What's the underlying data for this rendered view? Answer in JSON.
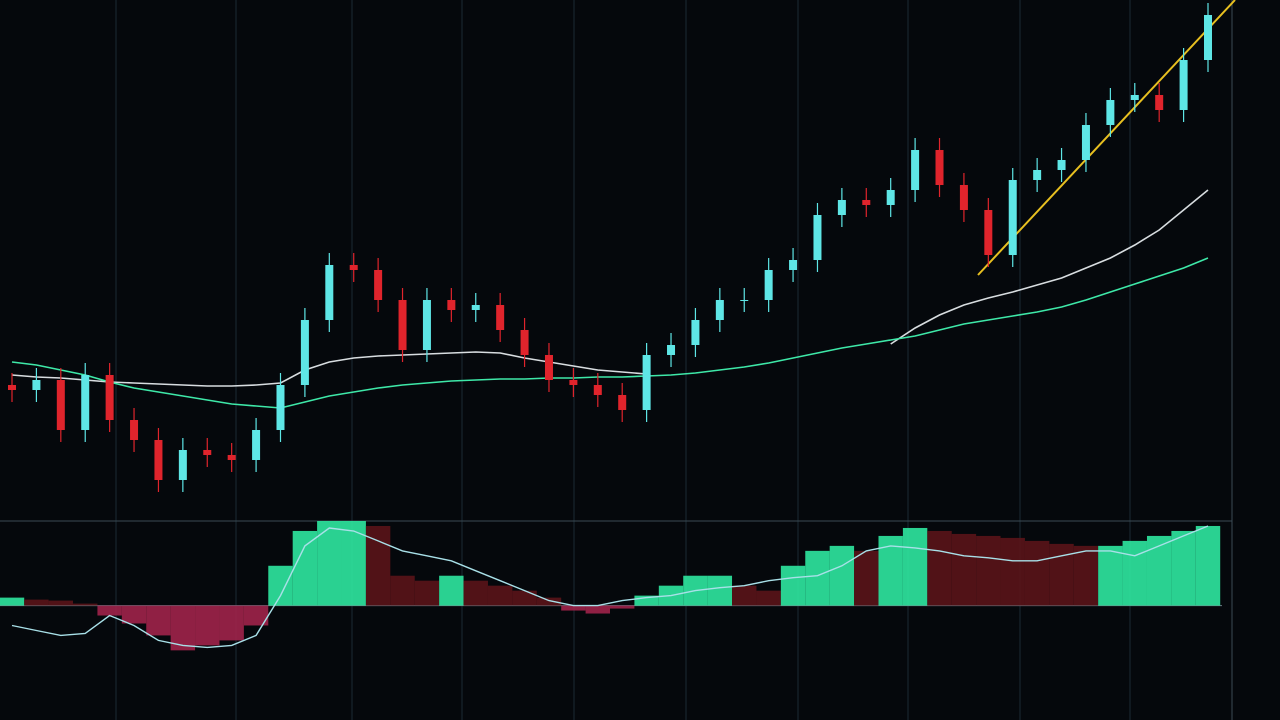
{
  "chart_data": [
    {
      "type": "candlestick",
      "ylim": [
        0,
        520
      ],
      "up_color": "#5ee6e6",
      "down_color": "#e0242c",
      "open": [
        135,
        130,
        140,
        90,
        145,
        100,
        80,
        40,
        70,
        65,
        60,
        90,
        135,
        200,
        255,
        250,
        220,
        170,
        220,
        210,
        215,
        190,
        165,
        140,
        135,
        125,
        110,
        165,
        175,
        200,
        220,
        220,
        250,
        260,
        305,
        320,
        315,
        330,
        370,
        335,
        310,
        265,
        340,
        350,
        360,
        395,
        420,
        425,
        410,
        460
      ],
      "close": [
        130,
        140,
        90,
        145,
        100,
        80,
        40,
        70,
        65,
        60,
        90,
        135,
        200,
        255,
        250,
        220,
        170,
        220,
        210,
        215,
        190,
        165,
        140,
        135,
        125,
        110,
        165,
        175,
        200,
        220,
        220,
        250,
        260,
        305,
        320,
        315,
        330,
        370,
        335,
        310,
        265,
        340,
        350,
        360,
        395,
        420,
        425,
        410,
        460,
        505
      ],
      "high": [
        147,
        152,
        152,
        157,
        157,
        112,
        92,
        82,
        82,
        77,
        102,
        147,
        212,
        267,
        267,
        262,
        232,
        232,
        232,
        227,
        227,
        202,
        177,
        152,
        147,
        137,
        177,
        187,
        212,
        232,
        232,
        262,
        272,
        317,
        332,
        332,
        342,
        382,
        382,
        347,
        322,
        352,
        362,
        372,
        407,
        432,
        437,
        437,
        472,
        517
      ],
      "low": [
        118,
        118,
        78,
        78,
        88,
        68,
        28,
        28,
        53,
        48,
        48,
        78,
        123,
        188,
        238,
        208,
        158,
        158,
        198,
        198,
        178,
        153,
        128,
        123,
        113,
        98,
        98,
        153,
        163,
        188,
        208,
        208,
        238,
        248,
        293,
        303,
        303,
        318,
        323,
        298,
        253,
        253,
        328,
        338,
        348,
        383,
        408,
        398,
        398,
        448
      ],
      "overlays": [
        {
          "color": "#d8dde0",
          "values": [
            145,
            143,
            142,
            140,
            138,
            137,
            136,
            135,
            134,
            134,
            135,
            137,
            150,
            158,
            162,
            164,
            165,
            166,
            167,
            168,
            167,
            162,
            158,
            154,
            150,
            148,
            146,
            null,
            null,
            null,
            null,
            null,
            null,
            null,
            null,
            null,
            176,
            192,
            205,
            215,
            222,
            228,
            235,
            242,
            252,
            262,
            275,
            290,
            310,
            330
          ]
        },
        {
          "color": "#3ee8a8",
          "values": [
            158,
            155,
            150,
            145,
            138,
            132,
            128,
            124,
            120,
            116,
            114,
            112,
            118,
            124,
            128,
            132,
            135,
            137,
            139,
            140,
            141,
            141,
            142,
            142,
            143,
            143,
            144,
            145,
            147,
            150,
            153,
            157,
            162,
            167,
            172,
            176,
            180,
            184,
            190,
            196,
            200,
            204,
            208,
            213,
            220,
            228,
            236,
            244,
            252,
            262
          ]
        }
      ]
    },
    {
      "type": "macd",
      "ylim": [
        -115,
        85
      ],
      "rise_color": "#2fe8a0",
      "fall_color": "#5a1418",
      "neg_color": "#a0244a",
      "signal_color": "#a8e0e8",
      "histogram": [
        8,
        6,
        5,
        2,
        -10,
        -18,
        -30,
        -45,
        -40,
        -35,
        -20,
        40,
        75,
        85,
        85,
        80,
        30,
        25,
        30,
        25,
        20,
        15,
        8,
        -5,
        -8,
        -3,
        10,
        20,
        30,
        30,
        20,
        15,
        40,
        55,
        60,
        55,
        70,
        78,
        75,
        72,
        70,
        68,
        65,
        62,
        60,
        60,
        65,
        70,
        75,
        80
      ],
      "signal": [
        -20,
        -25,
        -30,
        -28,
        -10,
        -20,
        -35,
        -40,
        -42,
        -40,
        -30,
        10,
        60,
        78,
        75,
        65,
        55,
        50,
        45,
        35,
        25,
        15,
        5,
        0,
        0,
        5,
        8,
        10,
        15,
        18,
        20,
        25,
        28,
        30,
        40,
        55,
        60,
        58,
        55,
        50,
        48,
        45,
        45,
        50,
        55,
        55,
        50,
        60,
        70,
        80
      ]
    }
  ]
}
